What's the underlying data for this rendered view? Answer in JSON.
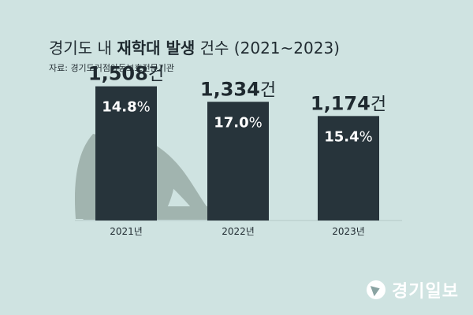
{
  "header": {
    "title_part1": "경기도 내 ",
    "title_part2": "재학대 발생",
    "title_part3": " 건수 (2021~2023)",
    "source": "자료: 경기도거점아동보호전문기관"
  },
  "chart_data": {
    "type": "bar",
    "categories": [
      "2021년",
      "2022년",
      "2023년"
    ],
    "values": [
      1508,
      1334,
      1174
    ],
    "value_labels": [
      "1,508",
      "1,334",
      "1,174"
    ],
    "value_unit": "건",
    "rates": [
      "14.8",
      "17.0",
      "15.4"
    ],
    "rate_unit": "%",
    "colors": {
      "bar": "#27343b",
      "background": "#cfe3e1",
      "silhouette": "#9aaca7"
    }
  },
  "watermark": {
    "logo_text": "경기일보"
  }
}
